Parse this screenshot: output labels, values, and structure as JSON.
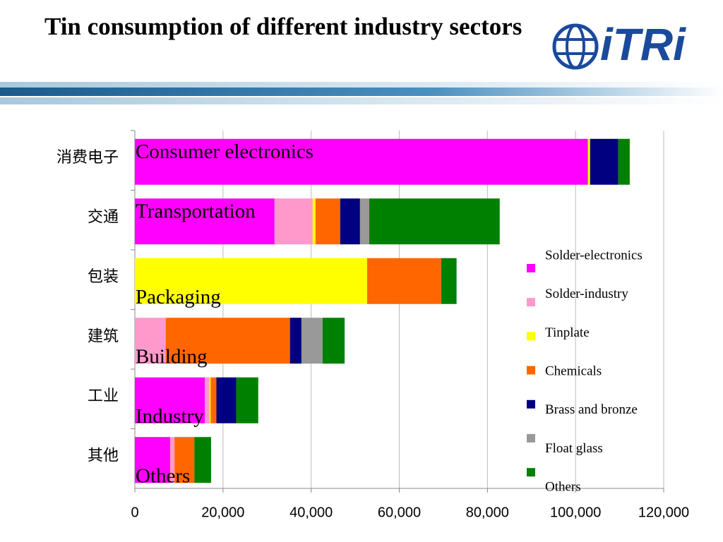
{
  "title": "Tin consumption of different industry sectors",
  "logo": "iTRi",
  "chart_data": {
    "type": "stacked-barh",
    "categories": [
      "消费电子",
      "交通",
      "包装",
      "建筑",
      "工业",
      "其他"
    ],
    "annotations": [
      "Consumer electronics",
      "Transportation",
      "Packaging",
      "Building",
      "Industry",
      "Others"
    ],
    "series": [
      {
        "name": "Solder-electronics",
        "color": "#ff00ff",
        "values": [
          102800,
          31700,
          0,
          0,
          15900,
          8000
        ]
      },
      {
        "name": "Solder-industry",
        "color": "#ff99cc",
        "values": [
          0,
          8650,
          0,
          7000,
          1000,
          1000
        ]
      },
      {
        "name": "Tinplate",
        "color": "#ffff00",
        "values": [
          500,
          640,
          52700,
          0,
          300,
          0
        ]
      },
      {
        "name": "Chemicals",
        "color": "#ff6600",
        "values": [
          0,
          5600,
          16800,
          28200,
          1300,
          4500
        ]
      },
      {
        "name": "Brass and bronze",
        "color": "#000080",
        "values": [
          6400,
          4500,
          0,
          2600,
          4500,
          0
        ]
      },
      {
        "name": "Float glass",
        "color": "#999999",
        "values": [
          0,
          2100,
          0,
          4800,
          0,
          0
        ]
      },
      {
        "name": "Others",
        "color": "#008000",
        "values": [
          2600,
          29600,
          3500,
          5000,
          5000,
          3800
        ]
      }
    ],
    "xlim": [
      0,
      120000
    ],
    "xticks": [
      0,
      {
        "value": 20000,
        "label": "20,000"
      },
      {
        "value": 40000,
        "label": "40,000"
      },
      {
        "value": 60000,
        "label": "60,000"
      },
      {
        "value": 80000,
        "label": "80,000"
      },
      {
        "value": 100000,
        "label": "100,000"
      },
      {
        "value": 120000,
        "label": "120,000"
      }
    ],
    "grid": true
  }
}
